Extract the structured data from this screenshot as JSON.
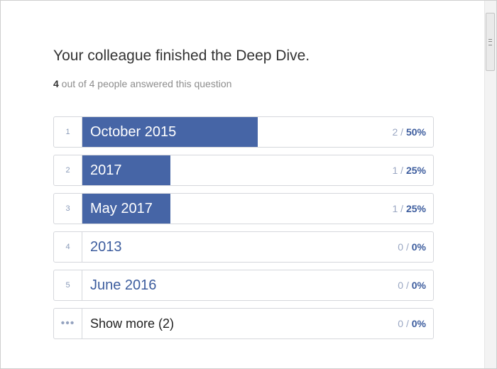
{
  "question": {
    "title": "Your colleague finished the Deep Dive.",
    "answered_count": "4",
    "answered_rest": " out of 4 people answered this question"
  },
  "answers": [
    {
      "rank": "1",
      "label": "October 2015",
      "count": "2",
      "separator": " / ",
      "percent": "50%",
      "fraction": 0.5
    },
    {
      "rank": "2",
      "label": "2017",
      "count": "1",
      "separator": " / ",
      "percent": "25%",
      "fraction": 0.25
    },
    {
      "rank": "3",
      "label": "May 2017",
      "count": "1",
      "separator": " / ",
      "percent": "25%",
      "fraction": 0.25
    },
    {
      "rank": "4",
      "label": "2013",
      "count": "0",
      "separator": " / ",
      "percent": "0%",
      "fraction": 0
    },
    {
      "rank": "5",
      "label": "June 2016",
      "count": "0",
      "separator": " / ",
      "percent": "0%",
      "fraction": 0
    }
  ],
  "show_more": {
    "icon": "more-dots-icon",
    "glyph": "•••",
    "label": "Show more (2)",
    "count": "0",
    "separator": " / ",
    "percent": "0%"
  },
  "colors": {
    "bar": "#4665a6",
    "accent_text": "#3d5d9e",
    "muted_text": "#9aa7c3"
  }
}
